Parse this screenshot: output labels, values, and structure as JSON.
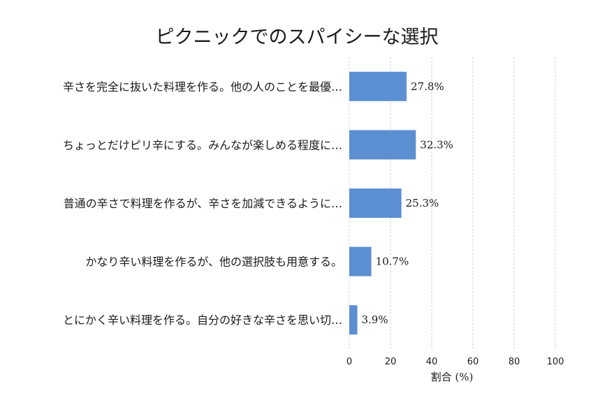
{
  "chart_data": {
    "type": "bar",
    "orientation": "horizontal",
    "title": "ピクニックでのスパイシーな選択",
    "xlabel": "割合 (%)",
    "ylabel": "",
    "xlim": [
      0,
      100
    ],
    "xticks": [
      0,
      20,
      40,
      60,
      80,
      100
    ],
    "grid": "x-dashed",
    "bar_color": "#5b8fd1",
    "categories": [
      "辛さを完全に抜いた料理を作る。他の人のことを最優…",
      "ちょっとだけピリ辛にする。みんなが楽しめる程度に…",
      "普通の辛さで料理を作るが、辛さを加減できるように…",
      "かなり辛い料理を作るが、他の選択肢も用意する。",
      "とにかく辛い料理を作る。自分の好きな辛さを思い切…"
    ],
    "values": [
      27.8,
      32.3,
      25.3,
      10.7,
      3.9
    ],
    "value_labels": [
      "27.8%",
      "32.3%",
      "25.3%",
      "10.7%",
      "3.9%"
    ]
  }
}
